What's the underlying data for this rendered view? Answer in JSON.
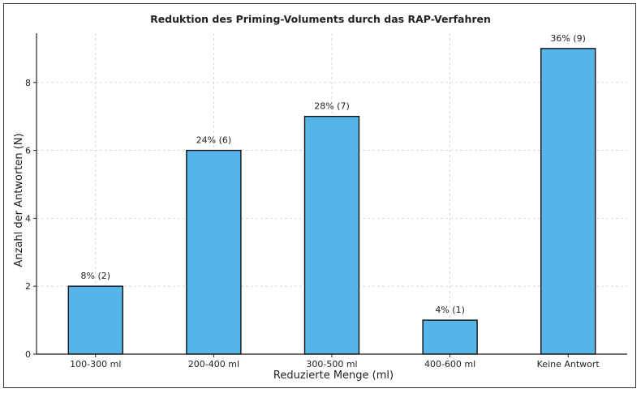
{
  "chart_data": {
    "type": "bar",
    "title": "Reduktion des Priming-Voluments durch das RAP-Verfahren",
    "xlabel": "Reduzierte Menge (ml)",
    "ylabel": "Anzahl der Antworten (N)",
    "categories": [
      "100-300 ml",
      "200-400 ml",
      "300-500 ml",
      "400-600 ml",
      "Keine Antwort"
    ],
    "values": [
      2,
      6,
      7,
      1,
      9
    ],
    "data_labels": [
      "8% (2)",
      "24% (6)",
      "28% (7)",
      "4% (1)",
      "36% (9)"
    ],
    "ylim": [
      0,
      9.45
    ],
    "yticks": [
      0,
      2,
      4,
      6,
      8
    ],
    "grid": true,
    "legend": "none",
    "colors": {
      "bar": "#56b4e9",
      "edge": "#111111",
      "grid": "#cfcfcf"
    }
  }
}
